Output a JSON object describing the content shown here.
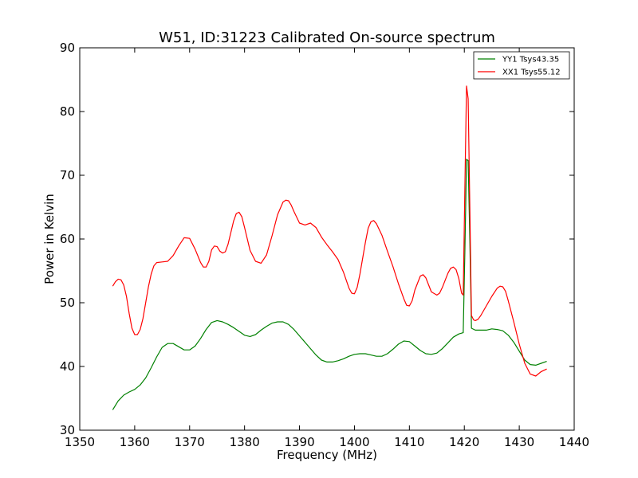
{
  "chart_data": {
    "type": "line",
    "title": "W51, ID:31223 Calibrated On-source spectrum",
    "xlabel": "Frequency (MHz)",
    "ylabel": "Power in Kelvin",
    "xlim": [
      1350,
      1440
    ],
    "ylim": [
      30,
      90
    ],
    "xticks": [
      "1350",
      "1360",
      "1370",
      "1380",
      "1390",
      "1400",
      "1410",
      "1420",
      "1430",
      "1440"
    ],
    "yticks": [
      "30",
      "40",
      "50",
      "60",
      "70",
      "80",
      "90"
    ],
    "grid": false,
    "legend_position": "top-right",
    "series": [
      {
        "name": "YY1 Tsys43.35",
        "color": "#008000",
        "x": [
          1356,
          1357,
          1358,
          1359,
          1360,
          1361,
          1362,
          1363,
          1364,
          1365,
          1366,
          1367,
          1368,
          1369,
          1370,
          1371,
          1372,
          1373,
          1374,
          1375,
          1376,
          1377,
          1378,
          1379,
          1380,
          1381,
          1382,
          1383,
          1384,
          1385,
          1386,
          1387,
          1388,
          1389,
          1390,
          1391,
          1392,
          1393,
          1394,
          1395,
          1396,
          1397,
          1398,
          1399,
          1400,
          1401,
          1402,
          1403,
          1404,
          1405,
          1406,
          1407,
          1408,
          1409,
          1410,
          1411,
          1412,
          1413,
          1414,
          1415,
          1416,
          1417,
          1418,
          1419,
          1419.8,
          1420.1,
          1420.4,
          1420.7,
          1421,
          1421.3,
          1422,
          1423,
          1424,
          1425,
          1426,
          1427,
          1428,
          1429,
          1430,
          1431,
          1432,
          1433,
          1434,
          1435
        ],
        "y": [
          33.2,
          34.6,
          35.5,
          36.0,
          36.4,
          37.1,
          38.2,
          39.8,
          41.5,
          43.0,
          43.6,
          43.6,
          43.1,
          42.6,
          42.6,
          43.2,
          44.4,
          45.8,
          46.9,
          47.2,
          47.0,
          46.6,
          46.1,
          45.5,
          44.9,
          44.7,
          45.0,
          45.7,
          46.3,
          46.8,
          47.0,
          47.0,
          46.6,
          45.8,
          44.8,
          43.8,
          42.8,
          41.8,
          41.0,
          40.7,
          40.7,
          40.9,
          41.2,
          41.6,
          41.9,
          42.0,
          42.0,
          41.8,
          41.6,
          41.6,
          42.0,
          42.7,
          43.5,
          44.0,
          43.9,
          43.2,
          42.5,
          42.0,
          41.9,
          42.1,
          42.8,
          43.7,
          44.6,
          45.1,
          45.3,
          58.0,
          72.5,
          72.3,
          60.0,
          46.0,
          45.7,
          45.7,
          45.7,
          45.9,
          45.8,
          45.6,
          44.9,
          43.8,
          42.4,
          41.0,
          40.3,
          40.2,
          40.5,
          40.8
        ]
      },
      {
        "name": "XX1 Tsys55.12",
        "color": "#ff0000",
        "x": [
          1356,
          1356.5,
          1357,
          1357.5,
          1358,
          1358.5,
          1359,
          1359.5,
          1360,
          1360.5,
          1361,
          1361.5,
          1362,
          1362.5,
          1363,
          1363.5,
          1364,
          1365,
          1366,
          1367,
          1368,
          1369,
          1370,
          1371,
          1372,
          1372.5,
          1373,
          1373.5,
          1374,
          1374.5,
          1375,
          1375.5,
          1376,
          1376.5,
          1377,
          1377.5,
          1378,
          1378.5,
          1379,
          1379.5,
          1380,
          1381,
          1382,
          1383,
          1384,
          1385,
          1386,
          1387,
          1387.5,
          1388,
          1388.5,
          1389,
          1390,
          1391,
          1392,
          1393,
          1394,
          1395,
          1396,
          1397,
          1398,
          1399,
          1399.5,
          1400,
          1400.5,
          1401,
          1402,
          1402.5,
          1403,
          1403.5,
          1404,
          1405,
          1406,
          1407,
          1408,
          1409,
          1409.5,
          1410,
          1410.5,
          1411,
          1412,
          1412.5,
          1413,
          1413.5,
          1414,
          1415,
          1415.5,
          1416,
          1417,
          1417.5,
          1418,
          1418.5,
          1419,
          1419.5,
          1419.8,
          1420.1,
          1420.4,
          1420.7,
          1421,
          1421.3,
          1421.7,
          1422,
          1422.5,
          1423,
          1424,
          1425,
          1426,
          1426.5,
          1427,
          1427.5,
          1428,
          1429,
          1430,
          1431,
          1432,
          1433,
          1434,
          1435
        ],
        "y": [
          52.6,
          53.3,
          53.7,
          53.6,
          52.8,
          51.0,
          48.3,
          46.0,
          45.0,
          45.0,
          45.8,
          47.5,
          50.0,
          52.5,
          54.5,
          55.8,
          56.3,
          56.4,
          56.5,
          57.4,
          58.9,
          60.2,
          60.1,
          58.4,
          56.3,
          55.6,
          55.6,
          56.5,
          58.3,
          58.9,
          58.8,
          58.1,
          57.8,
          58.0,
          59.2,
          61.0,
          62.8,
          64.0,
          64.2,
          63.5,
          61.8,
          58.2,
          56.5,
          56.2,
          57.5,
          60.5,
          63.8,
          65.8,
          66.1,
          66.0,
          65.3,
          64.3,
          62.5,
          62.2,
          62.5,
          61.8,
          60.3,
          59.1,
          58.0,
          56.8,
          54.8,
          52.3,
          51.5,
          51.4,
          52.4,
          54.5,
          59.5,
          61.7,
          62.7,
          62.9,
          62.4,
          60.6,
          58.1,
          55.7,
          53.0,
          50.6,
          49.6,
          49.5,
          50.3,
          52.0,
          54.2,
          54.4,
          53.9,
          52.8,
          51.7,
          51.2,
          51.5,
          52.4,
          54.6,
          55.4,
          55.6,
          55.2,
          53.8,
          51.5,
          51.2,
          68.0,
          84.0,
          82.0,
          65.0,
          48.0,
          47.3,
          47.2,
          47.4,
          48.0,
          49.5,
          51.0,
          52.3,
          52.6,
          52.5,
          51.8,
          50.3,
          47.0,
          43.5,
          40.5,
          38.8,
          38.5,
          39.2,
          39.6
        ]
      }
    ]
  }
}
